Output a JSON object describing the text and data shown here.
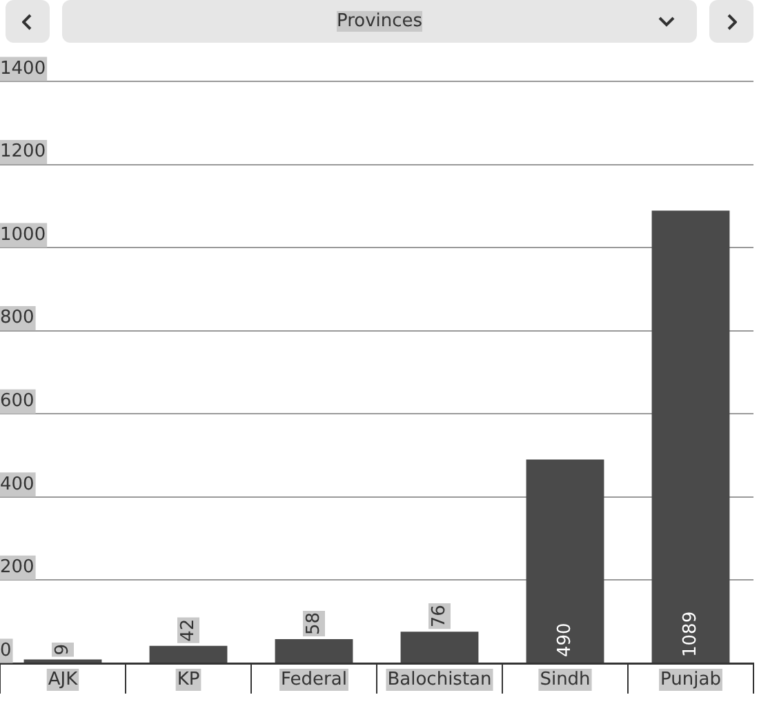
{
  "chart_data": {
    "type": "bar",
    "title": "Provinces",
    "categories": [
      "AJK",
      "KP",
      "Federal",
      "Balochistan",
      "Sindh",
      "Punjab"
    ],
    "values": [
      9,
      42,
      58,
      76,
      490,
      1089
    ],
    "color": "#4a4a4a",
    "ylim": [
      0,
      1400
    ],
    "yticks": [
      0,
      200,
      400,
      600,
      800,
      1000,
      1200,
      1400
    ],
    "grid": "y",
    "data_labels": true
  }
}
